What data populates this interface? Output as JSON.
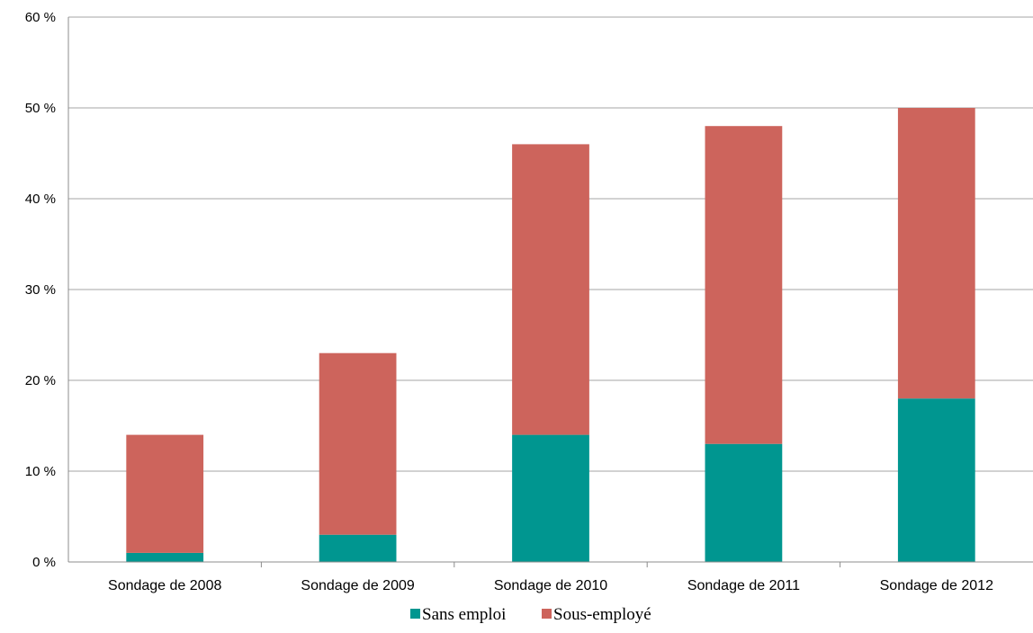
{
  "chart_data": {
    "type": "bar",
    "stacked": true,
    "categories": [
      "Sondage de 2008",
      "Sondage de 2009",
      "Sondage de 2010",
      "Sondage de 2011",
      "Sondage de 2012"
    ],
    "series": [
      {
        "name": "Sans emploi",
        "values": [
          1,
          3,
          14,
          13,
          18
        ],
        "color": "#009690"
      },
      {
        "name": "Sous-employé",
        "values": [
          13,
          20,
          32,
          35,
          32
        ],
        "color": "#cd645c"
      }
    ],
    "title": "",
    "xlabel": "",
    "ylabel": "",
    "ylim": [
      0,
      60
    ],
    "yticks": [
      0,
      10,
      20,
      30,
      40,
      50,
      60
    ],
    "ytick_suffix": " %",
    "grid": true,
    "legend_position": "bottom"
  }
}
